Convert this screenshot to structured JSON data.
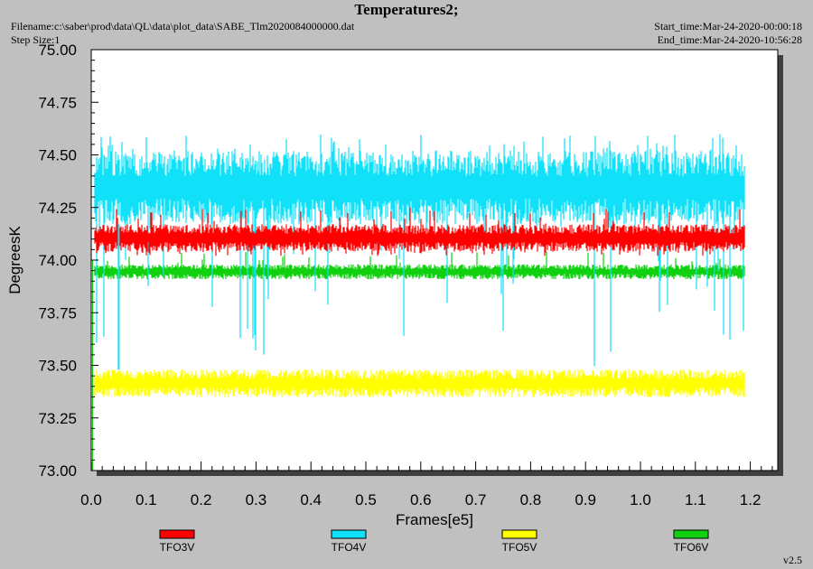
{
  "header": {
    "title": "Temperatures2;",
    "filename": "Filename:c:\\saber\\prod\\data\\QL\\data\\plot_data\\SABE_Tlm2020084000000.dat",
    "step_size": "Step Size:1",
    "start_time": "Start_time:Mar-24-2020-00:00:18",
    "end_time": "End_time:Mar-24-2020-10:56:28"
  },
  "version": "v2.5",
  "colors": {
    "TFO3V": "#ff0000",
    "TFO4V": "#10e0f8",
    "TFO5V": "#ffff00",
    "TFO6V": "#10d010",
    "plot_bg": "#ffffff",
    "page_bg": "#c0c0c0"
  },
  "chart_data": {
    "type": "line",
    "title": "Temperatures2;",
    "xlabel": "Frames[e5]",
    "ylabel": "DegreesK",
    "xlim": [
      0.0,
      1.25
    ],
    "ylim": [
      73.0,
      75.0
    ],
    "x_ticks": [
      "0.0",
      "0.1",
      "0.2",
      "0.3",
      "0.4",
      "0.5",
      "0.6",
      "0.7",
      "0.8",
      "0.9",
      "1.0",
      "1.1",
      "1.2"
    ],
    "y_ticks": [
      "73.00",
      "73.25",
      "73.50",
      "73.75",
      "74.00",
      "74.25",
      "74.50",
      "74.75",
      "75.00"
    ],
    "legend_position": "bottom",
    "series": [
      {
        "name": "TFO3V",
        "x_range": [
          0.0,
          1.19
        ],
        "typical_range": [
          74.04,
          74.17
        ],
        "max": 74.25,
        "min": 74.02
      },
      {
        "name": "TFO4V",
        "x_range": [
          0.0,
          1.19
        ],
        "typical_range": [
          74.17,
          74.52
        ],
        "max": 74.6,
        "min": 73.48
      },
      {
        "name": "TFO5V",
        "x_range": [
          0.0,
          1.19
        ],
        "typical_range": [
          73.35,
          73.48
        ],
        "max": 73.48,
        "min": 73.35
      },
      {
        "name": "TFO6V",
        "x_range": [
          0.0,
          1.19
        ],
        "typical_range": [
          73.91,
          73.98
        ],
        "max": 74.04,
        "min": 73.91
      }
    ]
  }
}
